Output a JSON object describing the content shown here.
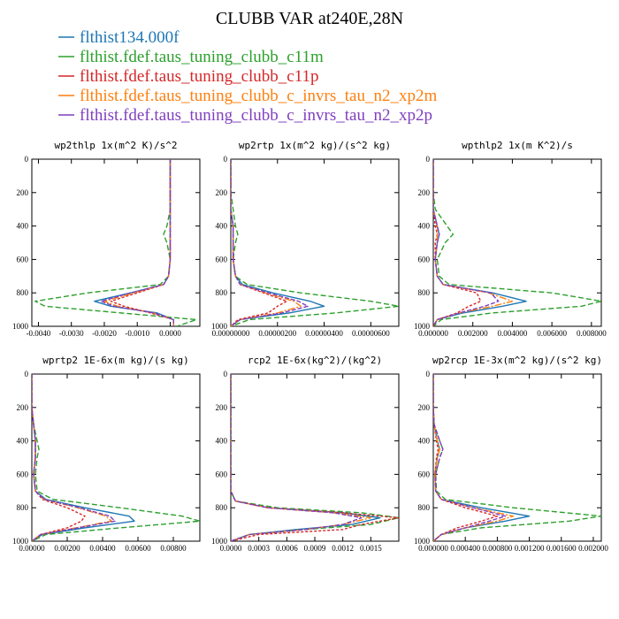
{
  "figure": {
    "title": "CLUBB VAR at240E,28N"
  },
  "legend": [
    {
      "name": "flthist134.000f",
      "color": "#1f77b4",
      "dash": ""
    },
    {
      "name": "flthist.fdef.taus_tuning_clubb_c11m",
      "color": "#2ca02c",
      "dash": "6,3"
    },
    {
      "name": "flthist.fdef.taus_tuning_clubb_c11p",
      "color": "#d62728",
      "dash": "3,2"
    },
    {
      "name": "flthist.fdef.taus_tuning_clubb_c_invrs_tau_n2_xp2m",
      "color": "#ff7f0e",
      "dash": "8,2,2,2"
    },
    {
      "name": "flthist.fdef.taus_tuning_clubb_c_invrs_tau_n2_xp2p",
      "color": "#7f3fbf",
      "dash": "5,2"
    }
  ],
  "chart_data": [
    {
      "type": "line",
      "title": "wp2thlp  1x(m^2 K)/s^2",
      "xlim": [
        -0.0042,
        0.0009
      ],
      "ylim": [
        1000,
        0
      ],
      "xticks": [
        -0.004,
        -0.003,
        -0.002,
        -0.001,
        0.0
      ],
      "xtick_labels": [
        "-0.0040",
        "-0.0030",
        "-0.0020",
        "-0.0010",
        "0.0000"
      ],
      "yticks": [
        0,
        200,
        400,
        600,
        800,
        1000
      ],
      "y": [
        0,
        100,
        200,
        300,
        400,
        450,
        500,
        600,
        700,
        750,
        800,
        850,
        880,
        920,
        960,
        1000
      ],
      "series": [
        {
          "values": [
            0.0,
            0.0,
            0.0,
            0.0,
            0.0,
            0.0,
            0.0,
            0.0,
            -5e-05,
            -0.0002,
            -0.0012,
            -0.0023,
            -0.0018,
            -0.0004,
            0.0001,
            0.0001
          ]
        },
        {
          "values": [
            0.0,
            0.0,
            0.0,
            0.0,
            -0.0001,
            -0.0002,
            -0.0001,
            0.0,
            -5e-05,
            -0.0003,
            -0.0025,
            -0.0041,
            -0.0038,
            -0.0015,
            0.0008,
            0.0002
          ]
        },
        {
          "values": [
            0.0,
            0.0,
            0.0,
            0.0,
            0.0,
            0.0,
            0.0,
            0.0,
            -5e-05,
            -0.0002,
            -0.001,
            -0.0018,
            -0.0014,
            -0.0006,
            0.0001,
            0.0001
          ]
        },
        {
          "values": [
            0.0,
            0.0,
            0.0,
            0.0,
            0.0,
            0.0,
            0.0,
            0.0,
            -5e-05,
            -0.0002,
            -0.0011,
            -0.002,
            -0.0016,
            -0.0005,
            0.0001,
            0.0001
          ]
        },
        {
          "values": [
            0.0,
            0.0,
            0.0,
            0.0,
            0.0,
            0.0,
            0.0,
            0.0,
            -5e-05,
            -0.0002,
            -0.0012,
            -0.0021,
            -0.0017,
            -0.0005,
            0.0001,
            0.0001
          ]
        }
      ]
    },
    {
      "type": "line",
      "title": "wp2rtp  1x(m^2 kg)/(s^2 kg)",
      "xlim": [
        0.0,
        7.2e-06
      ],
      "ylim": [
        1000,
        0
      ],
      "xticks": [
        0.0,
        2e-06,
        4e-06,
        6e-06
      ],
      "xtick_labels": [
        "0.00000000",
        "0.00000200",
        "0.00000400",
        "0.00000600"
      ],
      "yticks": [
        0,
        200,
        400,
        600,
        800,
        1000
      ],
      "y": [
        0,
        100,
        200,
        300,
        400,
        450,
        500,
        600,
        700,
        750,
        800,
        850,
        880,
        920,
        960,
        1000
      ],
      "series": [
        {
          "values": [
            0.0,
            0.0,
            0.0,
            0.0,
            1e-07,
            1e-07,
            1e-07,
            1e-07,
            2e-07,
            5e-07,
            1.8e-06,
            3.4e-06,
            4e-06,
            2.5e-06,
            4e-07,
            0.0
          ]
        },
        {
          "values": [
            0.0,
            0.0,
            0.0,
            1e-07,
            2e-07,
            3e-07,
            2e-07,
            1e-07,
            2e-07,
            7e-07,
            3e-06,
            6e-06,
            7.2e-06,
            4.5e-06,
            8e-07,
            0.0
          ]
        },
        {
          "values": [
            0.0,
            0.0,
            0.0,
            0.0,
            1e-07,
            1e-07,
            1e-07,
            1e-07,
            2e-07,
            4e-07,
            1.4e-06,
            2.4e-06,
            2e-06,
            1.6e-06,
            3e-07,
            0.0
          ]
        },
        {
          "values": [
            0.0,
            0.0,
            0.0,
            0.0,
            1e-07,
            1e-07,
            1e-07,
            1e-07,
            2e-07,
            4e-07,
            1.5e-06,
            2.7e-06,
            3e-06,
            2e-06,
            4e-07,
            0.0
          ]
        },
        {
          "values": [
            0.0,
            0.0,
            0.0,
            0.0,
            1e-07,
            1e-07,
            1e-07,
            1e-07,
            2e-07,
            4e-07,
            1.6e-06,
            2.9e-06,
            3.3e-06,
            2.2e-06,
            4e-07,
            0.0
          ]
        }
      ]
    },
    {
      "type": "line",
      "title": "wpthlp2  1x(m K^2)/s",
      "xlim": [
        0.0,
        0.0085
      ],
      "ylim": [
        1000,
        0
      ],
      "xticks": [
        0.0,
        0.002,
        0.004,
        0.006,
        0.008
      ],
      "xtick_labels": [
        "0.000000",
        "0.002000",
        "0.004000",
        "0.006000",
        "0.008000"
      ],
      "yticks": [
        0,
        200,
        400,
        600,
        800,
        1000
      ],
      "y": [
        0,
        100,
        200,
        300,
        400,
        450,
        500,
        600,
        700,
        750,
        800,
        850,
        880,
        920,
        960,
        1000
      ],
      "series": [
        {
          "values": [
            0.0,
            0.0,
            0.0,
            0.0,
            0.0002,
            0.0003,
            0.0002,
            0.0001,
            0.0002,
            0.0005,
            0.003,
            0.0047,
            0.0035,
            0.0015,
            0.0002,
            0.0
          ]
        },
        {
          "values": [
            0.0,
            0.0,
            0.0,
            0.0001,
            0.0007,
            0.001,
            0.0006,
            0.0002,
            0.0003,
            0.0008,
            0.006,
            0.0085,
            0.0075,
            0.003,
            0.0004,
            0.0
          ]
        },
        {
          "values": [
            0.0,
            0.0,
            0.0,
            0.0,
            0.0001,
            0.0002,
            0.0001,
            0.0001,
            0.0002,
            0.0005,
            0.0022,
            0.0024,
            0.0018,
            0.0012,
            0.0002,
            0.0
          ]
        },
        {
          "values": [
            0.0,
            0.0,
            0.0,
            0.0,
            0.0002,
            0.0002,
            0.0002,
            0.0001,
            0.0002,
            0.0005,
            0.0028,
            0.004,
            0.003,
            0.0013,
            0.0002,
            0.0
          ]
        },
        {
          "values": [
            0.0,
            0.0,
            0.0,
            0.0,
            0.0002,
            0.0003,
            0.0002,
            0.0001,
            0.0002,
            0.0005,
            0.0029,
            0.0033,
            0.0026,
            0.0013,
            0.0002,
            0.0
          ]
        }
      ]
    },
    {
      "type": "line",
      "title": "wprtp2  1E-6x(m kg)/(s kg)",
      "xlim": [
        0.0,
        0.0095
      ],
      "ylim": [
        1000,
        0
      ],
      "xticks": [
        0.0,
        0.002,
        0.004,
        0.006,
        0.008
      ],
      "xtick_labels": [
        "0.00000",
        "0.00200",
        "0.00400",
        "0.00600",
        "0.00800"
      ],
      "yticks": [
        0,
        200,
        400,
        600,
        800,
        1000
      ],
      "y": [
        0,
        100,
        200,
        300,
        400,
        450,
        500,
        600,
        700,
        750,
        800,
        850,
        880,
        920,
        960,
        1000
      ],
      "series": [
        {
          "values": [
            0.0,
            0.0,
            0.0,
            0.0001,
            0.0002,
            0.0002,
            0.0002,
            0.0001,
            0.0002,
            0.0008,
            0.003,
            0.0055,
            0.0058,
            0.003,
            0.0006,
            0.0
          ]
        },
        {
          "values": [
            0.0,
            0.0,
            0.0,
            0.0001,
            0.0003,
            0.0004,
            0.0003,
            0.0002,
            0.0003,
            0.0012,
            0.005,
            0.0085,
            0.0095,
            0.005,
            0.0008,
            0.0
          ]
        },
        {
          "values": [
            0.0,
            0.0,
            0.0,
            0.0001,
            0.0002,
            0.0002,
            0.0002,
            0.0001,
            0.0002,
            0.0006,
            0.002,
            0.003,
            0.0028,
            0.002,
            0.0005,
            0.0
          ]
        },
        {
          "values": [
            0.0,
            0.0,
            0.0,
            0.0001,
            0.0002,
            0.0002,
            0.0002,
            0.0001,
            0.0002,
            0.0007,
            0.0026,
            0.0042,
            0.0045,
            0.0025,
            0.0005,
            0.0
          ]
        },
        {
          "values": [
            0.0,
            0.0,
            0.0,
            0.0001,
            0.0002,
            0.0002,
            0.0002,
            0.0001,
            0.0002,
            0.0007,
            0.0027,
            0.0044,
            0.0047,
            0.0026,
            0.0005,
            0.0
          ]
        }
      ]
    },
    {
      "type": "line",
      "title": "rcp2  1E-6x(kg^2)/(kg^2)",
      "xlim": [
        0.0,
        0.0018
      ],
      "ylim": [
        1000,
        0
      ],
      "xticks": [
        0.0,
        0.0003,
        0.0006,
        0.0009,
        0.0012,
        0.0015
      ],
      "xtick_labels": [
        "0.0000",
        "0.0003",
        "0.0006",
        "0.0009",
        "0.0012",
        "0.0015"
      ],
      "yticks": [
        0,
        200,
        400,
        600,
        800,
        1000
      ],
      "y": [
        0,
        100,
        200,
        300,
        400,
        500,
        600,
        700,
        760,
        800,
        830,
        860,
        900,
        930,
        960,
        1000
      ],
      "series": [
        {
          "values": [
            0.0,
            0.0,
            0.0,
            0.0,
            0.0,
            0.0,
            0.0,
            0.0,
            5e-05,
            0.0004,
            0.0012,
            0.0016,
            0.0013,
            0.0007,
            0.0002,
            0.0
          ]
        },
        {
          "values": [
            0.0,
            0.0,
            0.0,
            0.0,
            0.0,
            0.0,
            0.0,
            0.0,
            5e-05,
            0.0005,
            0.0014,
            0.0018,
            0.0015,
            0.0008,
            0.0002,
            0.0
          ]
        },
        {
          "values": [
            0.0,
            0.0,
            0.0,
            0.0,
            0.0,
            0.0,
            0.0,
            0.0,
            5e-05,
            0.0004,
            0.0012,
            0.0018,
            0.0014,
            0.0012,
            0.0003,
            0.0
          ]
        },
        {
          "values": [
            0.0,
            0.0,
            0.0,
            0.0,
            0.0,
            0.0,
            0.0,
            0.0,
            5e-05,
            0.0004,
            0.0011,
            0.0015,
            0.0012,
            0.0008,
            0.0002,
            0.0
          ]
        },
        {
          "values": [
            0.0,
            0.0,
            0.0,
            0.0,
            0.0,
            0.0,
            0.0,
            0.0,
            5e-05,
            0.0004,
            0.0011,
            0.0014,
            0.0012,
            0.0008,
            0.0002,
            0.0
          ]
        }
      ]
    },
    {
      "type": "line",
      "title": "wp2rcp  1E-3x(m^2 kg)/(s^2 kg)",
      "xlim": [
        0.0,
        0.0021
      ],
      "ylim": [
        1000,
        0
      ],
      "xticks": [
        0.0,
        0.0004,
        0.0008,
        0.0012,
        0.0016,
        0.002
      ],
      "xtick_labels": [
        "0.000000",
        "0.000400",
        "0.000800",
        "0.001200",
        "0.001600",
        "0.002000"
      ],
      "yticks": [
        0,
        200,
        400,
        600,
        800,
        1000
      ],
      "y": [
        0,
        100,
        200,
        300,
        400,
        450,
        500,
        600,
        700,
        750,
        800,
        850,
        880,
        920,
        960,
        1000
      ],
      "series": [
        {
          "values": [
            0.0,
            0.0,
            0.0,
            1e-05,
            5e-05,
            8e-05,
            5e-05,
            2e-05,
            3e-05,
            0.0001,
            0.0006,
            0.0012,
            0.0009,
            0.0004,
            0.0001,
            0.0
          ]
        },
        {
          "values": [
            0.0,
            0.0,
            0.0,
            1e-05,
            8e-05,
            0.00012,
            8e-05,
            3e-05,
            4e-05,
            0.00015,
            0.001,
            0.0021,
            0.0017,
            0.0006,
            0.0001,
            0.0
          ]
        },
        {
          "values": [
            0.0,
            0.0,
            0.0,
            1e-05,
            4e-05,
            6e-05,
            4e-05,
            2e-05,
            3e-05,
            0.0001,
            0.0004,
            0.0008,
            0.0006,
            0.0003,
            0.0001,
            0.0
          ]
        },
        {
          "values": [
            0.0,
            0.0,
            0.0,
            1e-05,
            5e-05,
            8e-05,
            5e-05,
            2e-05,
            3e-05,
            0.0001,
            0.0005,
            0.001,
            0.0008,
            0.0004,
            0.0001,
            0.0
          ]
        },
        {
          "values": [
            0.0,
            0.0,
            0.0,
            1e-05,
            8e-05,
            0.00012,
            8e-05,
            3e-05,
            3e-05,
            0.0001,
            0.0005,
            0.0009,
            0.0007,
            0.0004,
            0.0001,
            0.0
          ]
        }
      ]
    }
  ]
}
